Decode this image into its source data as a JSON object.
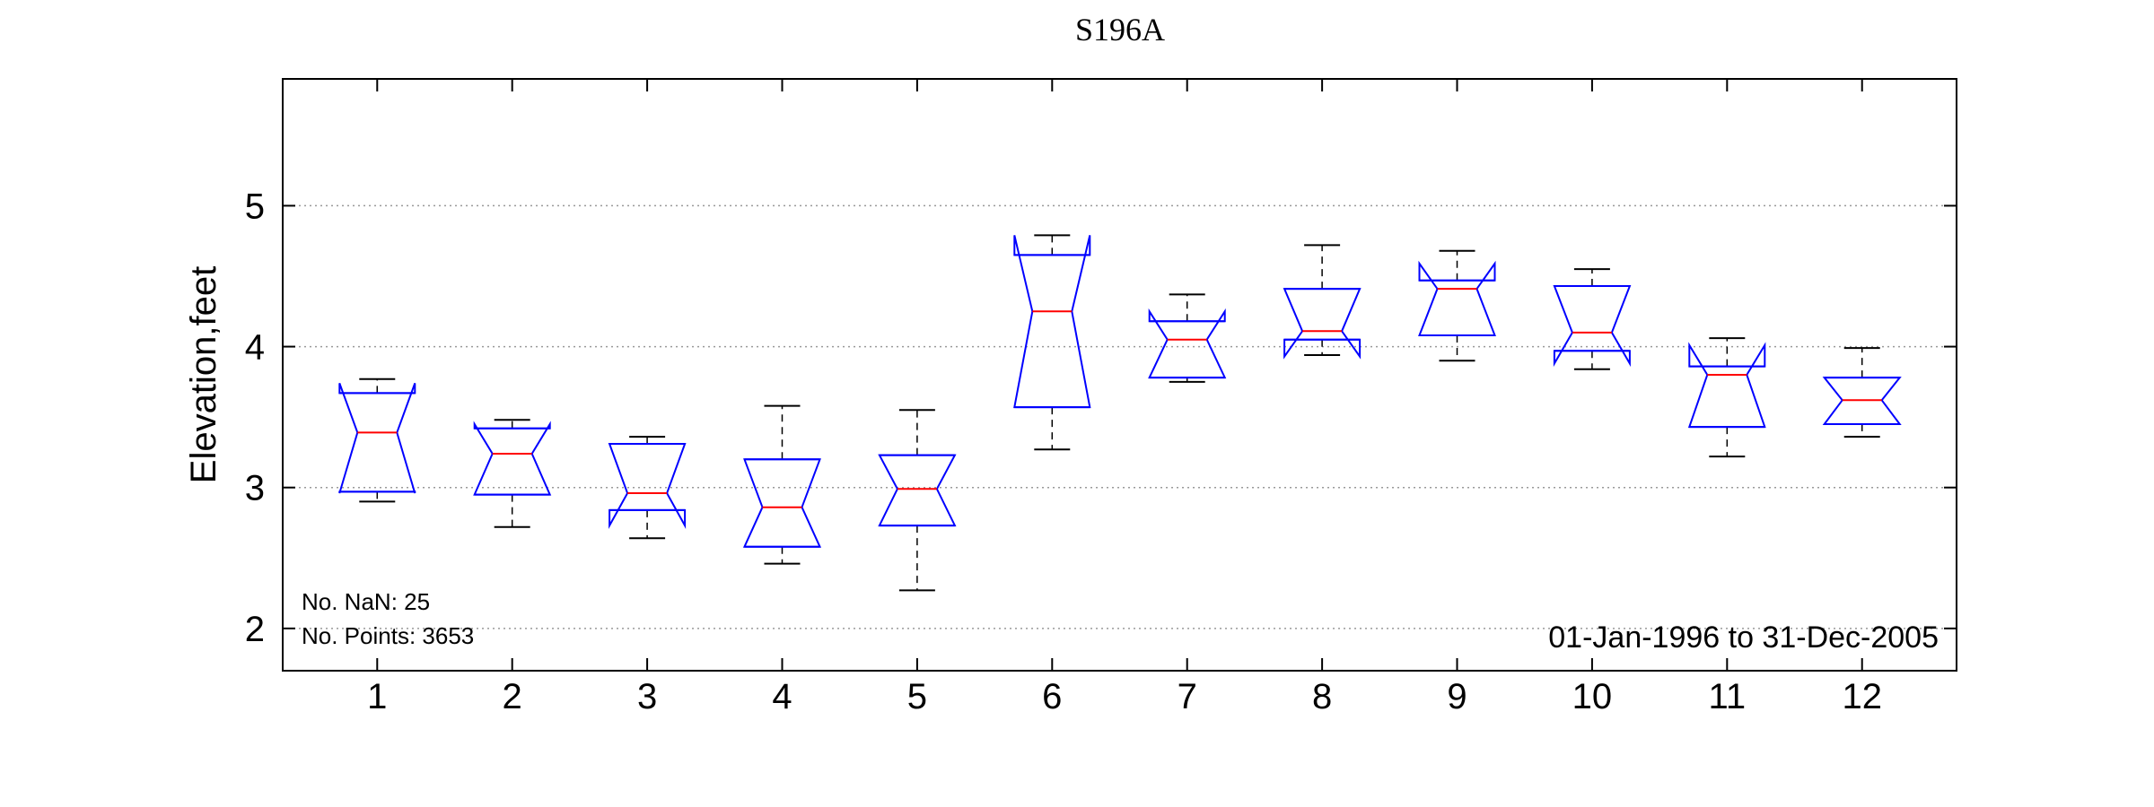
{
  "chart_data": {
    "type": "boxplot",
    "title": "S196A",
    "xlabel": "",
    "ylabel": "Elevation,feet",
    "ylim": [
      1.7,
      5.9
    ],
    "yticks": [
      2,
      3,
      4,
      5
    ],
    "ytick_labels": [
      "2",
      "3",
      "4",
      "5"
    ],
    "grid": "horizontal dotted",
    "notched": true,
    "categories": [
      "1",
      "2",
      "3",
      "4",
      "5",
      "6",
      "7",
      "8",
      "9",
      "10",
      "11",
      "12"
    ],
    "boxes": [
      {
        "whisker_low": 2.9,
        "q1": 2.97,
        "median": 3.39,
        "q3": 3.67,
        "whisker_high": 3.77,
        "notch_low": 2.96,
        "notch_high": 3.74
      },
      {
        "whisker_low": 2.72,
        "q1": 2.95,
        "median": 3.24,
        "q3": 3.42,
        "whisker_high": 3.48,
        "notch_low": 2.95,
        "notch_high": 3.45
      },
      {
        "whisker_low": 2.64,
        "q1": 2.84,
        "median": 2.96,
        "q3": 3.31,
        "whisker_high": 3.36,
        "notch_low": 2.73,
        "notch_high": 3.31
      },
      {
        "whisker_low": 2.46,
        "q1": 2.58,
        "median": 2.86,
        "q3": 3.2,
        "whisker_high": 3.58,
        "notch_low": 2.58,
        "notch_high": 3.2
      },
      {
        "whisker_low": 2.27,
        "q1": 2.73,
        "median": 2.99,
        "q3": 3.23,
        "whisker_high": 3.55,
        "notch_low": 2.73,
        "notch_high": 3.23
      },
      {
        "whisker_low": 3.27,
        "q1": 3.57,
        "median": 4.25,
        "q3": 4.65,
        "whisker_high": 4.79,
        "notch_low": 3.57,
        "notch_high": 4.79
      },
      {
        "whisker_low": 3.75,
        "q1": 3.78,
        "median": 4.05,
        "q3": 4.18,
        "whisker_high": 4.37,
        "notch_low": 3.78,
        "notch_high": 4.25
      },
      {
        "whisker_low": 3.94,
        "q1": 4.05,
        "median": 4.11,
        "q3": 4.41,
        "whisker_high": 4.72,
        "notch_low": 3.93,
        "notch_high": 4.41
      },
      {
        "whisker_low": 3.9,
        "q1": 4.08,
        "median": 4.41,
        "q3": 4.47,
        "whisker_high": 4.68,
        "notch_low": 4.08,
        "notch_high": 4.59
      },
      {
        "whisker_low": 3.84,
        "q1": 3.97,
        "median": 4.1,
        "q3": 4.43,
        "whisker_high": 4.55,
        "notch_low": 3.88,
        "notch_high": 4.43
      },
      {
        "whisker_low": 3.22,
        "q1": 3.43,
        "median": 3.8,
        "q3": 3.86,
        "whisker_high": 4.06,
        "notch_low": 3.43,
        "notch_high": 4.01
      },
      {
        "whisker_low": 3.36,
        "q1": 3.45,
        "median": 3.62,
        "q3": 3.78,
        "whisker_high": 3.99,
        "notch_low": 3.45,
        "notch_high": 3.78
      }
    ],
    "annotations": {
      "nan_text": "No. NaN: 25",
      "points_text": "No. Points: 3653",
      "range_text": "01-Jan-1996 to 31-Dec-2005"
    },
    "colors": {
      "box": "#0000ff",
      "median": "#ff0000",
      "whisker": "#000000",
      "grid": "#999999"
    }
  }
}
